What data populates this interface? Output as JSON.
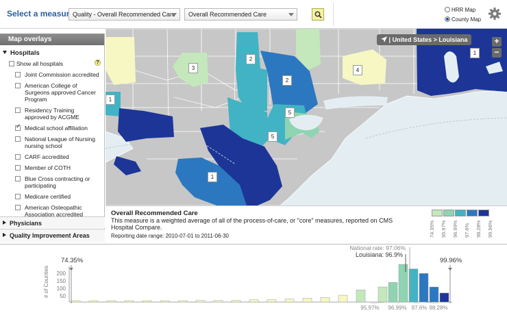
{
  "toolbar": {
    "measure_label": "Select a measure:",
    "measure_category": "Quality - Overall Recommended Care",
    "measure_item": "Overall Recommended Care",
    "map_options": [
      "HRR Map",
      "County Map"
    ],
    "selected_map": "County Map"
  },
  "sidebar": {
    "title": "Map overlays",
    "hospitals_heading": "Hospitals",
    "show_all_label": "Show all hospitals",
    "help_symbol": "?",
    "items": [
      {
        "label": "Joint Commission accredited",
        "checked": false
      },
      {
        "label": "American College of Surgeons approved Cancer Program",
        "checked": false
      },
      {
        "label": "Residency Training approved by ACGME",
        "checked": false
      },
      {
        "label": "Medical school affiliation",
        "checked": true
      },
      {
        "label": "National League of Nursing nursing school",
        "checked": false
      },
      {
        "label": "CARF accredited",
        "checked": false
      },
      {
        "label": "Member of COTH",
        "checked": false
      },
      {
        "label": "Blue Cross contracting or participating",
        "checked": false
      },
      {
        "label": "Medicare certified",
        "checked": false
      },
      {
        "label": "American Osteopathic Association accredited",
        "checked": false
      }
    ],
    "physicians_label": "Physicians",
    "quality_label": "Quality Improvement Areas"
  },
  "map": {
    "breadcrumb_us": "United States",
    "breadcrumb_arrow": ">",
    "breadcrumb_state": "Louisiana",
    "breadcrumb_separator": "|",
    "zoom_in": "+",
    "zoom_out": "−",
    "labels": [
      "3",
      "2",
      "2",
      "4",
      "1",
      "5",
      "5",
      "1",
      "1"
    ]
  },
  "legend": {
    "title": "Overall Recommended Care",
    "description": "This measure is a weighted average of all of the process-of-care, or \"core\" measures, reported on CMS Hospital Compare.",
    "date_range": "Reporting date range: 2010-07-01 to 2011-06-30",
    "bins": [
      {
        "label": "74.35%",
        "color": "#f7f7c3"
      },
      {
        "label": "95.97%",
        "color": "#c4e8bc"
      },
      {
        "label": "96.99%",
        "color": "#8fd4b1"
      },
      {
        "label": "97.6%",
        "color": "#41b3c5"
      },
      {
        "label": "98.28%",
        "color": "#2c78c0"
      },
      {
        "label": "99.96%",
        "color": "#1c3597"
      }
    ]
  },
  "colors": {
    "gray_county": "#c7c7c7",
    "water": "#e4eef2",
    "brand_blue": "#2a5f9e"
  },
  "histogram": {
    "y_axis_title": "# of Counties",
    "y_ticks": [
      "200",
      "150",
      "100",
      "50"
    ],
    "min_label": "74.35%",
    "max_label": "99.96%",
    "national_rate": "National rate: 97.06%",
    "state_rate": "Louisiana: 96.9%",
    "bottom_labels": [
      "95.97%",
      "96.99%",
      "97.6%",
      "98.28%"
    ],
    "bars": [
      {
        "count": 8,
        "color": "#f7f7c3"
      },
      {
        "count": 8,
        "color": "#f7f7c3"
      },
      {
        "count": 8,
        "color": "#f7f7c3"
      },
      {
        "count": 5,
        "color": "#f7f7c3"
      },
      {
        "count": 5,
        "color": "#f7f7c3"
      },
      {
        "count": 8,
        "color": "#f7f7c3"
      },
      {
        "count": 8,
        "color": "#f7f7c3"
      },
      {
        "count": 10,
        "color": "#f7f7c3"
      },
      {
        "count": 10,
        "color": "#f7f7c3"
      },
      {
        "count": 10,
        "color": "#f7f7c3"
      },
      {
        "count": 15,
        "color": "#f7f7c3"
      },
      {
        "count": 15,
        "color": "#f7f7c3"
      },
      {
        "count": 20,
        "color": "#f7f7c3"
      },
      {
        "count": 25,
        "color": "#f7f7c3"
      },
      {
        "count": 30,
        "color": "#f7f7c3"
      },
      {
        "count": 45,
        "color": "#f7f7c3"
      },
      {
        "count": 80,
        "color": "#c4e8bc"
      },
      {
        "count": 100,
        "color": "#c4e8bc"
      },
      {
        "count": 130,
        "color": "#8fd4b1"
      },
      {
        "count": 250,
        "color": "#8fd4b1"
      },
      {
        "count": 220,
        "color": "#41b3c5"
      },
      {
        "count": 190,
        "color": "#2c78c0"
      },
      {
        "count": 100,
        "color": "#2c78c0"
      },
      {
        "count": 60,
        "color": "#1c3597"
      }
    ]
  }
}
